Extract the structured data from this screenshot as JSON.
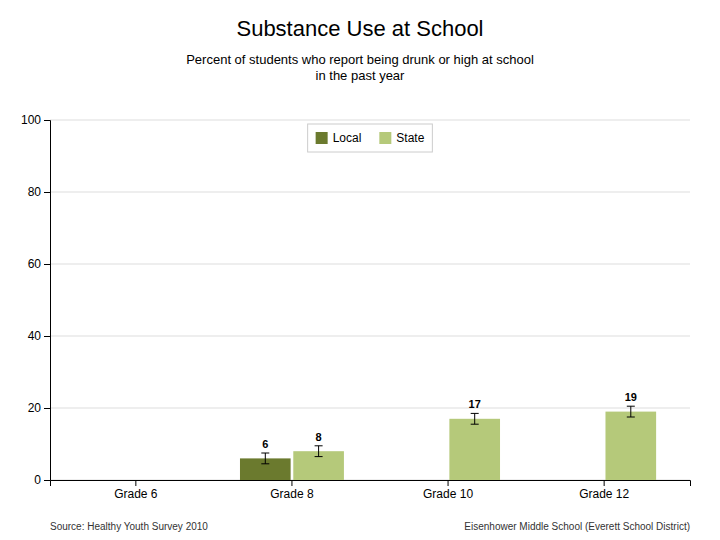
{
  "chart_data": {
    "type": "bar",
    "title": "Substance Use at School",
    "subtitle": "Percent of students who report being drunk or high at school\nin the past year",
    "categories": [
      "Grade 6",
      "Grade 8",
      "Grade 10",
      "Grade 12"
    ],
    "series": [
      {
        "name": "Local",
        "color": "#6b7a2e",
        "values": [
          0,
          6,
          0,
          0
        ],
        "errors": [
          0,
          1.5,
          0,
          0
        ]
      },
      {
        "name": "State",
        "color": "#b5c97a",
        "values": [
          0,
          8,
          17,
          19
        ],
        "errors": [
          0,
          1.5,
          1.5,
          1.5
        ]
      }
    ],
    "ylim": [
      0,
      100
    ],
    "yticks": [
      0,
      20,
      40,
      60,
      80,
      100
    ],
    "grid": true,
    "legend": "top",
    "data_labels": true,
    "annotations": [
      "Source: Healthy Youth Survey 2010",
      "Eisenhower Middle School (Everett School District)"
    ]
  }
}
